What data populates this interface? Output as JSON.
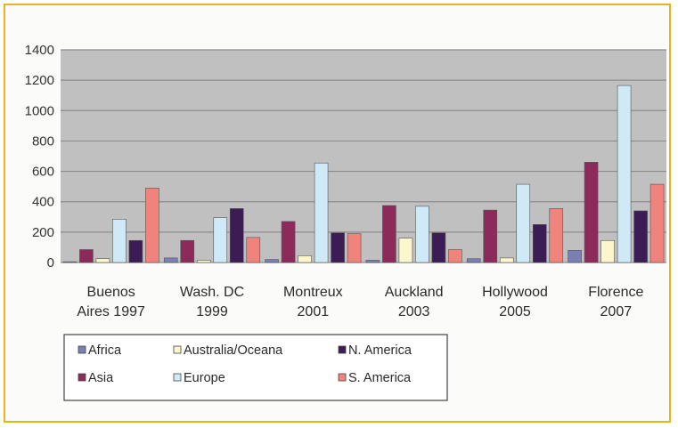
{
  "chart_data": {
    "type": "bar",
    "title": "",
    "xlabel": "",
    "ylabel": "",
    "ylim": [
      0,
      1400
    ],
    "yticks": [
      0,
      200,
      400,
      600,
      800,
      1000,
      1200,
      1400
    ],
    "grid": true,
    "legend_position": "bottom",
    "categories": [
      [
        "Buenos",
        "Aires 1997"
      ],
      [
        "Wash. DC",
        "1999"
      ],
      [
        "Montreux",
        "2001"
      ],
      [
        "Auckland",
        "2003"
      ],
      [
        "Hollywood",
        "2005"
      ],
      [
        "Florence",
        "2007"
      ]
    ],
    "series": [
      {
        "name": "Africa",
        "color": "#7a7fb4",
        "values": [
          5,
          30,
          20,
          15,
          25,
          80
        ]
      },
      {
        "name": "Asia",
        "color": "#8c2a5c",
        "values": [
          85,
          145,
          270,
          375,
          345,
          660
        ]
      },
      {
        "name": "Australia/Oceana",
        "color": "#fbf6cc",
        "values": [
          25,
          15,
          45,
          160,
          30,
          145
        ]
      },
      {
        "name": "Europe",
        "color": "#cfeaf6",
        "values": [
          285,
          295,
          655,
          370,
          515,
          1165
        ]
      },
      {
        "name": "N. America",
        "color": "#3b1c55",
        "values": [
          145,
          355,
          195,
          195,
          250,
          340
        ]
      },
      {
        "name": "S. America",
        "color": "#f0837b",
        "values": [
          490,
          165,
          190,
          85,
          355,
          515
        ]
      }
    ],
    "legend_layout": [
      [
        "Africa",
        "Australia/Oceana",
        "N. America"
      ],
      [
        "Asia",
        "Europe",
        "S. America"
      ]
    ]
  }
}
